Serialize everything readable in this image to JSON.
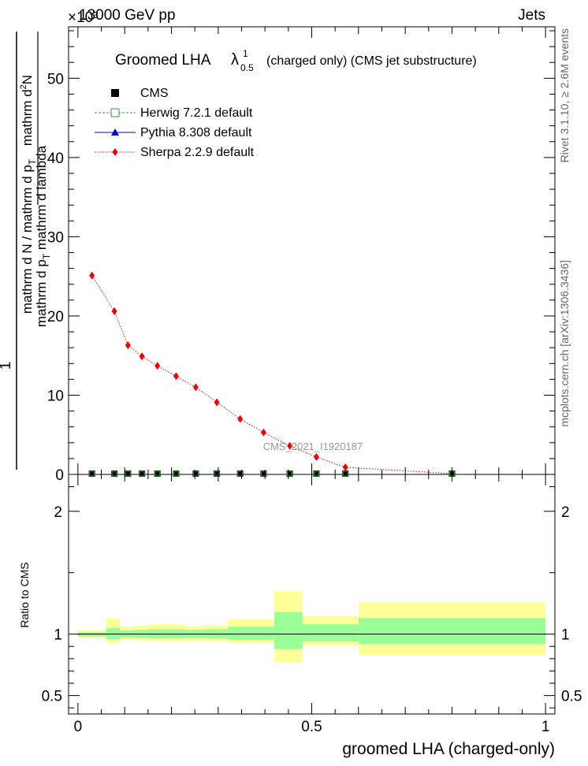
{
  "header": {
    "energy": "13000 GeV pp",
    "process": "Jets",
    "exponent_label": "×10³"
  },
  "side": {
    "rivet": "Rivet 3.1.10, ≥ 2.6M events",
    "mcplots": "mcplots.cern.ch [arXiv:1306.3436]"
  },
  "title": {
    "main": "Groomed LHA",
    "lambda": "λ",
    "sup": "1",
    "sub": "0.5",
    "suffix": "(charged only) (CMS jet substructure)"
  },
  "watermark": "CMS_2021_I1920187",
  "axes": {
    "ylabel_main_num": "mathrm d²N",
    "ylabel_main_den_prefix": "mathrm d p",
    "ylabel_main_den_sub": "T",
    "ylabel_main_den_suffix": "mathrm d lambda",
    "ylabel_frac_one": "1",
    "ylabel_frac_den_a": "mathrm d N / mathrm d p",
    "ylabel_frac_den_sub": "T",
    "ylabel_ratio": "Ratio to CMS",
    "xlabel": "groomed LHA (charged-only)"
  },
  "legend": {
    "entries": [
      {
        "label": "CMS",
        "color": "#000000",
        "marker": "square"
      },
      {
        "label": "Herwig 7.2.1 default",
        "color": "#339933",
        "marker": "open-square"
      },
      {
        "label": "Pythia 8.308 default",
        "color": "#0000cc",
        "marker": "triangle"
      },
      {
        "label": "Sherpa 2.2.9 default",
        "color": "#ee0000",
        "marker": "diamond"
      }
    ]
  },
  "colors": {
    "band_outer": "#ffff99",
    "band_inner": "#99ff99",
    "sherpa": "#ee0000"
  },
  "chart_data": [
    {
      "type": "line",
      "panel": "main",
      "xlim": [
        -0.02,
        1.02
      ],
      "ylim": [
        0,
        56.5
      ],
      "y_scale_note": "×10³",
      "yticks": [
        0,
        10,
        20,
        30,
        40,
        50
      ],
      "ytick_labels": [
        "0",
        "10",
        "20",
        "30",
        "40",
        "50"
      ],
      "series": [
        {
          "name": "CMS",
          "x": [
            0.03,
            0.078,
            0.107,
            0.137,
            0.17,
            0.21,
            0.252,
            0.297,
            0.347,
            0.397,
            0.453,
            0.51,
            0.572,
            0.8
          ],
          "values": [
            0.1,
            0.1,
            0.1,
            0.1,
            0.1,
            0.1,
            0.1,
            0.1,
            0.1,
            0.1,
            0.1,
            0.1,
            0.1,
            0.1
          ]
        },
        {
          "name": "Herwig 7.2.1 default",
          "x": [
            0.03,
            0.078,
            0.107,
            0.137,
            0.17,
            0.21,
            0.252,
            0.297,
            0.347,
            0.397,
            0.453,
            0.51,
            0.572,
            0.8
          ],
          "values": [
            0.1,
            0.1,
            0.1,
            0.1,
            0.1,
            0.1,
            0.1,
            0.1,
            0.1,
            0.1,
            0.1,
            0.1,
            0.1,
            0.1
          ]
        },
        {
          "name": "Pythia 8.308 default",
          "x": [
            0.03,
            0.078,
            0.107,
            0.137,
            0.17,
            0.21,
            0.252,
            0.297,
            0.347,
            0.397,
            0.453,
            0.51,
            0.572,
            0.8
          ],
          "values": [
            0.1,
            0.1,
            0.1,
            0.1,
            0.1,
            0.1,
            0.1,
            0.1,
            0.1,
            0.1,
            0.1,
            0.1,
            0.1,
            0.1
          ]
        },
        {
          "name": "Sherpa 2.2.9 default",
          "x": [
            0.03,
            0.078,
            0.107,
            0.137,
            0.17,
            0.21,
            0.252,
            0.297,
            0.347,
            0.397,
            0.453,
            0.51,
            0.572,
            0.8
          ],
          "values": [
            25.1,
            20.6,
            16.3,
            14.9,
            13.7,
            12.4,
            11.0,
            9.1,
            7.0,
            5.3,
            3.6,
            2.2,
            0.9,
            0.1
          ]
        }
      ]
    },
    {
      "type": "area",
      "panel": "ratio",
      "xlim": [
        -0.02,
        1.02
      ],
      "ylim": [
        0.35,
        2.3
      ],
      "yticks": [
        0.5,
        1,
        2
      ],
      "ytick_labels": [
        "0.5",
        "1",
        "2"
      ],
      "xticks": [
        0,
        0.5,
        1
      ],
      "xtick_labels": [
        "0",
        "0.5",
        "1"
      ],
      "bins": [
        {
          "lo": 0.0,
          "hi": 0.06,
          "inner": [
            0.985,
            1.015
          ],
          "outer": [
            0.97,
            1.03
          ]
        },
        {
          "lo": 0.06,
          "hi": 0.09,
          "inner": [
            0.96,
            1.05
          ],
          "outer": [
            0.93,
            1.13
          ]
        },
        {
          "lo": 0.09,
          "hi": 0.12,
          "inner": [
            0.975,
            1.03
          ],
          "outer": [
            0.955,
            1.06
          ]
        },
        {
          "lo": 0.12,
          "hi": 0.15,
          "inner": [
            0.97,
            1.035
          ],
          "outer": [
            0.95,
            1.07
          ]
        },
        {
          "lo": 0.15,
          "hi": 0.19,
          "inner": [
            0.965,
            1.04
          ],
          "outer": [
            0.945,
            1.08
          ]
        },
        {
          "lo": 0.19,
          "hi": 0.23,
          "inner": [
            0.965,
            1.04
          ],
          "outer": [
            0.94,
            1.08
          ]
        },
        {
          "lo": 0.23,
          "hi": 0.27,
          "inner": [
            0.97,
            1.035
          ],
          "outer": [
            0.945,
            1.065
          ]
        },
        {
          "lo": 0.27,
          "hi": 0.32,
          "inner": [
            0.965,
            1.04
          ],
          "outer": [
            0.94,
            1.075
          ]
        },
        {
          "lo": 0.32,
          "hi": 0.375,
          "inner": [
            0.955,
            1.06
          ],
          "outer": [
            0.93,
            1.12
          ]
        },
        {
          "lo": 0.375,
          "hi": 0.42,
          "inner": [
            0.955,
            1.06
          ],
          "outer": [
            0.93,
            1.12
          ]
        },
        {
          "lo": 0.42,
          "hi": 0.48,
          "inner": [
            0.88,
            1.18
          ],
          "outer": [
            0.77,
            1.35
          ]
        },
        {
          "lo": 0.48,
          "hi": 0.54,
          "inner": [
            0.94,
            1.08
          ],
          "outer": [
            0.91,
            1.15
          ]
        },
        {
          "lo": 0.54,
          "hi": 0.6,
          "inner": [
            0.94,
            1.08
          ],
          "outer": [
            0.91,
            1.15
          ]
        },
        {
          "lo": 0.6,
          "hi": 1.0,
          "inner": [
            0.92,
            1.13
          ],
          "outer": [
            0.83,
            1.26
          ]
        }
      ]
    }
  ]
}
